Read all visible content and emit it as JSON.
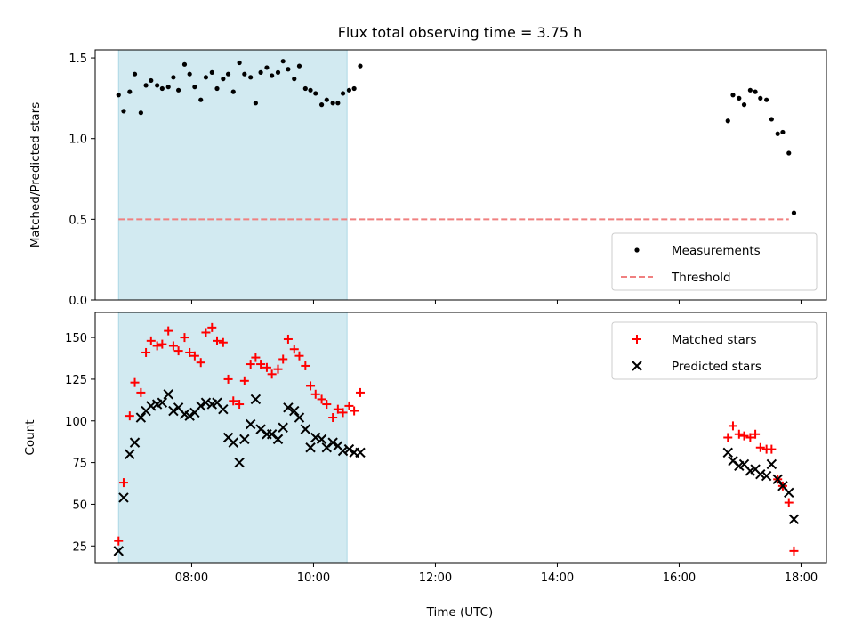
{
  "title": "Flux total observing time = 3.75 h",
  "xlabel": "Time (UTC)",
  "colors": {
    "measurements": "#000000",
    "threshold": "#f08080",
    "matched": "#ff0000",
    "predicted": "#000000",
    "shade": "#add8e6"
  },
  "chart_data": [
    {
      "type": "scatter",
      "ylabel": "Matched/Predicted stars",
      "ylim": [
        0,
        1.55
      ],
      "yticks": [
        "0.0",
        "0.5",
        "1.0",
        "1.5"
      ],
      "xlim": [
        "06:25",
        "18:25"
      ],
      "xticks": [
        "08:00",
        "10:00",
        "12:00",
        "14:00",
        "16:00",
        "18:00"
      ],
      "shaded_region": [
        "06:48",
        "10:33"
      ],
      "legend_position": "lower right",
      "threshold": {
        "name": "Threshold",
        "value": 0.5,
        "x": [
          "06:48",
          "17:48"
        ]
      },
      "series": [
        {
          "name": "Measurements",
          "marker": "dot",
          "points": [
            [
              "06:48",
              1.27
            ],
            [
              "06:53",
              1.17
            ],
            [
              "06:59",
              1.29
            ],
            [
              "07:04",
              1.4
            ],
            [
              "07:10",
              1.16
            ],
            [
              "07:15",
              1.33
            ],
            [
              "07:20",
              1.36
            ],
            [
              "07:26",
              1.33
            ],
            [
              "07:31",
              1.31
            ],
            [
              "07:37",
              1.32
            ],
            [
              "07:42",
              1.38
            ],
            [
              "07:47",
              1.3
            ],
            [
              "07:53",
              1.46
            ],
            [
              "07:58",
              1.4
            ],
            [
              "08:03",
              1.32
            ],
            [
              "08:09",
              1.24
            ],
            [
              "08:14",
              1.38
            ],
            [
              "08:20",
              1.41
            ],
            [
              "08:25",
              1.31
            ],
            [
              "08:31",
              1.37
            ],
            [
              "08:36",
              1.4
            ],
            [
              "08:41",
              1.29
            ],
            [
              "08:47",
              1.47
            ],
            [
              "08:52",
              1.4
            ],
            [
              "08:58",
              1.38
            ],
            [
              "09:03",
              1.22
            ],
            [
              "09:08",
              1.41
            ],
            [
              "09:14",
              1.44
            ],
            [
              "09:19",
              1.39
            ],
            [
              "09:25",
              1.41
            ],
            [
              "09:30",
              1.48
            ],
            [
              "09:35",
              1.43
            ],
            [
              "09:41",
              1.37
            ],
            [
              "09:46",
              1.45
            ],
            [
              "09:52",
              1.31
            ],
            [
              "09:57",
              1.3
            ],
            [
              "10:02",
              1.28
            ],
            [
              "10:08",
              1.21
            ],
            [
              "10:13",
              1.24
            ],
            [
              "10:19",
              1.22
            ],
            [
              "10:24",
              1.22
            ],
            [
              "10:29",
              1.28
            ],
            [
              "10:35",
              1.3
            ],
            [
              "10:40",
              1.31
            ],
            [
              "10:46",
              1.45
            ],
            [
              "16:48",
              1.11
            ],
            [
              "16:53",
              1.27
            ],
            [
              "16:59",
              1.25
            ],
            [
              "17:04",
              1.21
            ],
            [
              "17:10",
              1.3
            ],
            [
              "17:15",
              1.29
            ],
            [
              "17:20",
              1.25
            ],
            [
              "17:26",
              1.24
            ],
            [
              "17:31",
              1.12
            ],
            [
              "17:37",
              1.03
            ],
            [
              "17:42",
              1.04
            ],
            [
              "17:48",
              0.91
            ],
            [
              "17:53",
              0.54
            ]
          ]
        }
      ]
    },
    {
      "type": "scatter",
      "ylabel": "Count",
      "ylim": [
        15,
        165
      ],
      "yticks": [
        "25",
        "50",
        "75",
        "100",
        "125",
        "150"
      ],
      "xlim": [
        "06:25",
        "18:25"
      ],
      "xticks": [
        "08:00",
        "10:00",
        "12:00",
        "14:00",
        "16:00",
        "18:00"
      ],
      "shaded_region": [
        "06:48",
        "10:33"
      ],
      "legend_position": "upper right",
      "series": [
        {
          "name": "Matched stars",
          "marker": "plus",
          "points": [
            [
              "06:48",
              28
            ],
            [
              "06:53",
              63
            ],
            [
              "06:59",
              103
            ],
            [
              "07:04",
              123
            ],
            [
              "07:10",
              117
            ],
            [
              "07:15",
              141
            ],
            [
              "07:20",
              148
            ],
            [
              "07:26",
              145
            ],
            [
              "07:31",
              146
            ],
            [
              "07:37",
              154
            ],
            [
              "07:42",
              145
            ],
            [
              "07:47",
              142
            ],
            [
              "07:53",
              150
            ],
            [
              "07:58",
              141
            ],
            [
              "08:03",
              139
            ],
            [
              "08:09",
              135
            ],
            [
              "08:14",
              153
            ],
            [
              "08:20",
              156
            ],
            [
              "08:25",
              148
            ],
            [
              "08:31",
              147
            ],
            [
              "08:36",
              125
            ],
            [
              "08:41",
              112
            ],
            [
              "08:47",
              110
            ],
            [
              "08:52",
              124
            ],
            [
              "08:58",
              134
            ],
            [
              "09:03",
              138
            ],
            [
              "09:08",
              134
            ],
            [
              "09:14",
              132
            ],
            [
              "09:19",
              128
            ],
            [
              "09:25",
              131
            ],
            [
              "09:30",
              137
            ],
            [
              "09:35",
              149
            ],
            [
              "09:41",
              143
            ],
            [
              "09:46",
              139
            ],
            [
              "09:52",
              133
            ],
            [
              "09:57",
              121
            ],
            [
              "10:02",
              116
            ],
            [
              "10:08",
              113
            ],
            [
              "10:13",
              110
            ],
            [
              "10:19",
              102
            ],
            [
              "10:24",
              107
            ],
            [
              "10:29",
              105
            ],
            [
              "10:35",
              109
            ],
            [
              "10:40",
              106
            ],
            [
              "10:46",
              117
            ],
            [
              "16:48",
              90
            ],
            [
              "16:53",
              97
            ],
            [
              "16:59",
              92
            ],
            [
              "17:04",
              91
            ],
            [
              "17:10",
              90
            ],
            [
              "17:15",
              92
            ],
            [
              "17:20",
              84
            ],
            [
              "17:26",
              83
            ],
            [
              "17:31",
              83
            ],
            [
              "17:37",
              65
            ],
            [
              "17:42",
              61
            ],
            [
              "17:48",
              51
            ],
            [
              "17:53",
              22
            ]
          ]
        },
        {
          "name": "Predicted stars",
          "marker": "x",
          "points": [
            [
              "06:48",
              22
            ],
            [
              "06:53",
              54
            ],
            [
              "06:59",
              80
            ],
            [
              "07:04",
              87
            ],
            [
              "07:10",
              102
            ],
            [
              "07:15",
              106
            ],
            [
              "07:20",
              109
            ],
            [
              "07:26",
              110
            ],
            [
              "07:31",
              111
            ],
            [
              "07:37",
              116
            ],
            [
              "07:42",
              106
            ],
            [
              "07:47",
              108
            ],
            [
              "07:53",
              104
            ],
            [
              "07:58",
              103
            ],
            [
              "08:03",
              105
            ],
            [
              "08:09",
              109
            ],
            [
              "08:14",
              111
            ],
            [
              "08:20",
              110
            ],
            [
              "08:25",
              111
            ],
            [
              "08:31",
              107
            ],
            [
              "08:36",
              90
            ],
            [
              "08:41",
              87
            ],
            [
              "08:47",
              75
            ],
            [
              "08:52",
              89
            ],
            [
              "08:58",
              98
            ],
            [
              "09:03",
              113
            ],
            [
              "09:08",
              95
            ],
            [
              "09:14",
              92
            ],
            [
              "09:19",
              92
            ],
            [
              "09:25",
              89
            ],
            [
              "09:30",
              96
            ],
            [
              "09:35",
              108
            ],
            [
              "09:41",
              106
            ],
            [
              "09:46",
              102
            ],
            [
              "09:52",
              95
            ],
            [
              "09:57",
              84
            ],
            [
              "10:02",
              90
            ],
            [
              "10:08",
              89
            ],
            [
              "10:13",
              84
            ],
            [
              "10:19",
              87
            ],
            [
              "10:24",
              85
            ],
            [
              "10:29",
              82
            ],
            [
              "10:35",
              83
            ],
            [
              "10:40",
              81
            ],
            [
              "10:46",
              81
            ],
            [
              "16:48",
              81
            ],
            [
              "16:53",
              76
            ],
            [
              "16:59",
              73
            ],
            [
              "17:04",
              74
            ],
            [
              "17:10",
              70
            ],
            [
              "17:15",
              71
            ],
            [
              "17:20",
              68
            ],
            [
              "17:26",
              67
            ],
            [
              "17:31",
              74
            ],
            [
              "17:37",
              65
            ],
            [
              "17:42",
              61
            ],
            [
              "17:48",
              57
            ],
            [
              "17:53",
              41
            ]
          ]
        }
      ]
    }
  ]
}
